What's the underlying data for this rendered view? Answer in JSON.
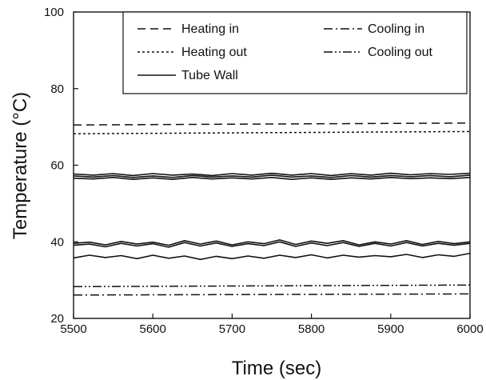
{
  "chart_data": {
    "type": "line",
    "title": "",
    "xlabel": "Time (sec)",
    "ylabel": "Temperature (°C)",
    "xlim": [
      5500,
      6000
    ],
    "ylim": [
      20,
      100
    ],
    "xticks": [
      5500,
      5600,
      5700,
      5800,
      5900,
      6000
    ],
    "yticks": [
      20,
      40,
      60,
      80,
      100
    ],
    "grid": false,
    "legend_position": "top-right",
    "legend": [
      {
        "label": "Heating in",
        "style": "dashed"
      },
      {
        "label": "Cooling in",
        "style": "dashdot"
      },
      {
        "label": "Heating out",
        "style": "dotted"
      },
      {
        "label": "Cooling out",
        "style": "dashdotdot"
      },
      {
        "label": "Tube Wall",
        "style": "solid"
      }
    ],
    "series": [
      {
        "name": "Heating in",
        "style": "dashed",
        "x": [
          5500,
          6000
        ],
        "y": [
          70.5,
          71.0
        ]
      },
      {
        "name": "Heating out",
        "style": "dotted",
        "x": [
          5500,
          6000
        ],
        "y": [
          68.2,
          68.8
        ]
      },
      {
        "name": "Tube Wall",
        "style": "solid",
        "x": [
          5500,
          5525,
          5550,
          5575,
          5600,
          5625,
          5650,
          5675,
          5700,
          5725,
          5750,
          5775,
          5800,
          5825,
          5850,
          5875,
          5900,
          5925,
          5950,
          5975,
          6000
        ],
        "y": [
          57.7,
          57.4,
          57.8,
          57.3,
          57.8,
          57.4,
          57.7,
          57.3,
          57.8,
          57.4,
          57.9,
          57.4,
          57.8,
          57.3,
          57.8,
          57.4,
          57.9,
          57.5,
          57.8,
          57.6,
          57.9
        ]
      },
      {
        "name": "Tube Wall",
        "style": "solid",
        "x": [
          5500,
          5525,
          5550,
          5575,
          5600,
          5625,
          5650,
          5675,
          5700,
          5725,
          5750,
          5775,
          5800,
          5825,
          5850,
          5875,
          5900,
          5925,
          5950,
          5975,
          6000
        ],
        "y": [
          57.2,
          56.9,
          57.3,
          56.8,
          57.2,
          56.8,
          57.3,
          56.9,
          57.2,
          56.9,
          57.4,
          56.9,
          57.2,
          56.8,
          57.3,
          56.9,
          57.3,
          57.0,
          57.3,
          57.0,
          57.4
        ]
      },
      {
        "name": "Tube Wall",
        "style": "solid",
        "x": [
          5500,
          5525,
          5550,
          5575,
          5600,
          5625,
          5650,
          5675,
          5700,
          5725,
          5750,
          5775,
          5800,
          5825,
          5850,
          5875,
          5900,
          5925,
          5950,
          5975,
          6000
        ],
        "y": [
          56.6,
          56.4,
          56.8,
          56.3,
          56.7,
          56.3,
          56.8,
          56.4,
          56.7,
          56.4,
          56.8,
          56.3,
          56.7,
          56.3,
          56.7,
          56.4,
          56.8,
          56.5,
          56.7,
          56.5,
          56.8
        ]
      },
      {
        "name": "Tube Wall",
        "style": "solid",
        "x": [
          5500,
          5520,
          5540,
          5560,
          5580,
          5600,
          5620,
          5640,
          5660,
          5680,
          5700,
          5720,
          5740,
          5760,
          5780,
          5800,
          5820,
          5840,
          5860,
          5880,
          5900,
          5920,
          5940,
          5960,
          5980,
          6000
        ],
        "y": [
          39.6,
          39.9,
          39.2,
          40.1,
          39.4,
          39.9,
          39.1,
          40.3,
          39.4,
          40.2,
          39.2,
          40.0,
          39.5,
          40.5,
          39.3,
          40.2,
          39.6,
          40.3,
          39.2,
          40.0,
          39.4,
          40.3,
          39.3,
          40.1,
          39.5,
          40.0
        ]
      },
      {
        "name": "Tube Wall",
        "style": "solid",
        "x": [
          5500,
          5520,
          5540,
          5560,
          5580,
          5600,
          5620,
          5640,
          5660,
          5680,
          5700,
          5720,
          5740,
          5760,
          5780,
          5800,
          5820,
          5840,
          5860,
          5880,
          5900,
          5920,
          5940,
          5960,
          5980,
          6000
        ],
        "y": [
          39.1,
          39.4,
          38.7,
          39.6,
          38.9,
          39.5,
          38.6,
          39.8,
          38.9,
          39.7,
          38.8,
          39.5,
          39.0,
          40.0,
          38.8,
          39.7,
          39.0,
          39.8,
          38.8,
          39.6,
          38.9,
          39.8,
          38.9,
          39.6,
          39.1,
          39.6
        ]
      },
      {
        "name": "Tube Wall",
        "style": "solid",
        "x": [
          5500,
          5520,
          5540,
          5560,
          5580,
          5600,
          5620,
          5640,
          5660,
          5680,
          5700,
          5720,
          5740,
          5760,
          5780,
          5800,
          5820,
          5840,
          5860,
          5880,
          5900,
          5920,
          5940,
          5960,
          5980,
          6000
        ],
        "y": [
          35.8,
          36.5,
          35.9,
          36.4,
          35.6,
          36.5,
          35.7,
          36.3,
          35.4,
          36.2,
          35.6,
          36.3,
          35.7,
          36.5,
          35.9,
          36.6,
          35.8,
          36.5,
          36.0,
          36.4,
          36.1,
          36.7,
          35.9,
          36.6,
          36.2,
          37.0
        ]
      },
      {
        "name": "Cooling in",
        "style": "dashdot",
        "x": [
          5500,
          6000
        ],
        "y": [
          26.1,
          26.4
        ]
      },
      {
        "name": "Cooling out",
        "style": "dashdotdot",
        "x": [
          5500,
          6000
        ],
        "y": [
          28.3,
          28.7
        ]
      }
    ]
  }
}
